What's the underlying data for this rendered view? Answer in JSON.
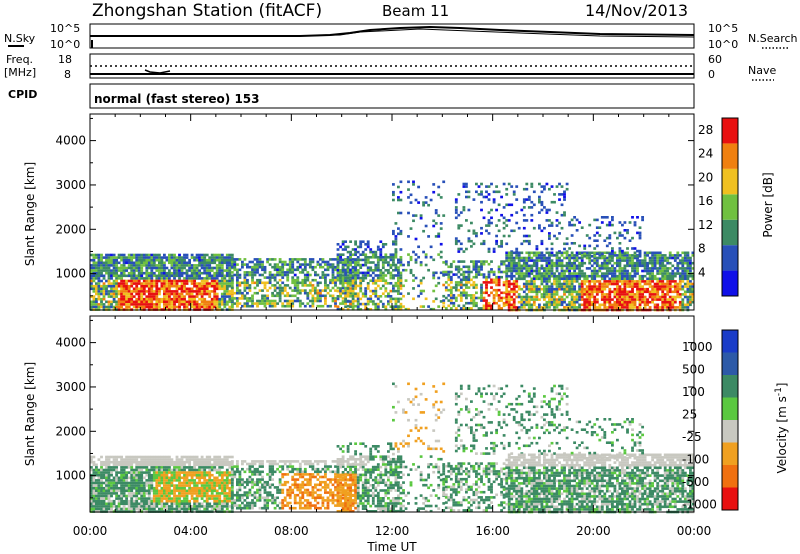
{
  "header": {
    "title": "Zhongshan Station (fitACF)",
    "beam": "Beam 11",
    "date": "14/Nov/2013"
  },
  "noise_panel": {
    "left_label": "N.Sky",
    "right_label": "N.Search",
    "left_ticks": [
      "10^5",
      "10^0"
    ],
    "right_ticks": [
      "10^5",
      "10^0"
    ]
  },
  "freq_panel": {
    "left_label_1": "Freq.",
    "left_label_2": "[MHz]",
    "left_ticks": [
      "18",
      "8"
    ],
    "right_label": "Nave",
    "right_ticks": [
      "60",
      "0"
    ]
  },
  "cpid_panel": {
    "label": "CPID",
    "mode_text": "normal (fast stereo) 153"
  },
  "chart_data": [
    {
      "type": "heatmap",
      "title": "",
      "xlabel": "Time UT",
      "ylabel": "Slant Range [km]",
      "x_ticks": [
        "00:00",
        "04:00",
        "08:00",
        "12:00",
        "16:00",
        "20:00",
        "00:00"
      ],
      "xlim_hours": [
        0,
        24
      ],
      "y_ticks": [
        1000,
        2000,
        3000,
        4000
      ],
      "ylim": [
        180,
        4600
      ],
      "colorbar_label": "Power [dB]",
      "colorbar_ticks": [
        4,
        8,
        12,
        16,
        20,
        24,
        28
      ],
      "colorbar_range": [
        0,
        30
      ],
      "colors": [
        "#1010e8",
        "#2850b8",
        "#3c8a64",
        "#70c040",
        "#f0c020",
        "#f08010",
        "#e81010"
      ]
    },
    {
      "type": "heatmap",
      "title": "",
      "xlabel": "Time UT",
      "ylabel": "Slant Range [km]",
      "x_ticks": [
        "00:00",
        "04:00",
        "08:00",
        "12:00",
        "16:00",
        "20:00",
        "00:00"
      ],
      "xlim_hours": [
        0,
        24
      ],
      "y_ticks": [
        1000,
        2000,
        3000,
        4000
      ],
      "ylim": [
        180,
        4600
      ],
      "colorbar_label": "Velocity [m s^-1]",
      "colorbar_ticks": [
        "1000",
        "500",
        "100",
        "25",
        "-25",
        "-100",
        "-500",
        "-1000"
      ],
      "colors": [
        "#1a3cc8",
        "#2d5aa8",
        "#3c8a64",
        "#5ac840",
        "#c8c8c0",
        "#f0a020",
        "#f07010",
        "#e81010"
      ]
    }
  ]
}
